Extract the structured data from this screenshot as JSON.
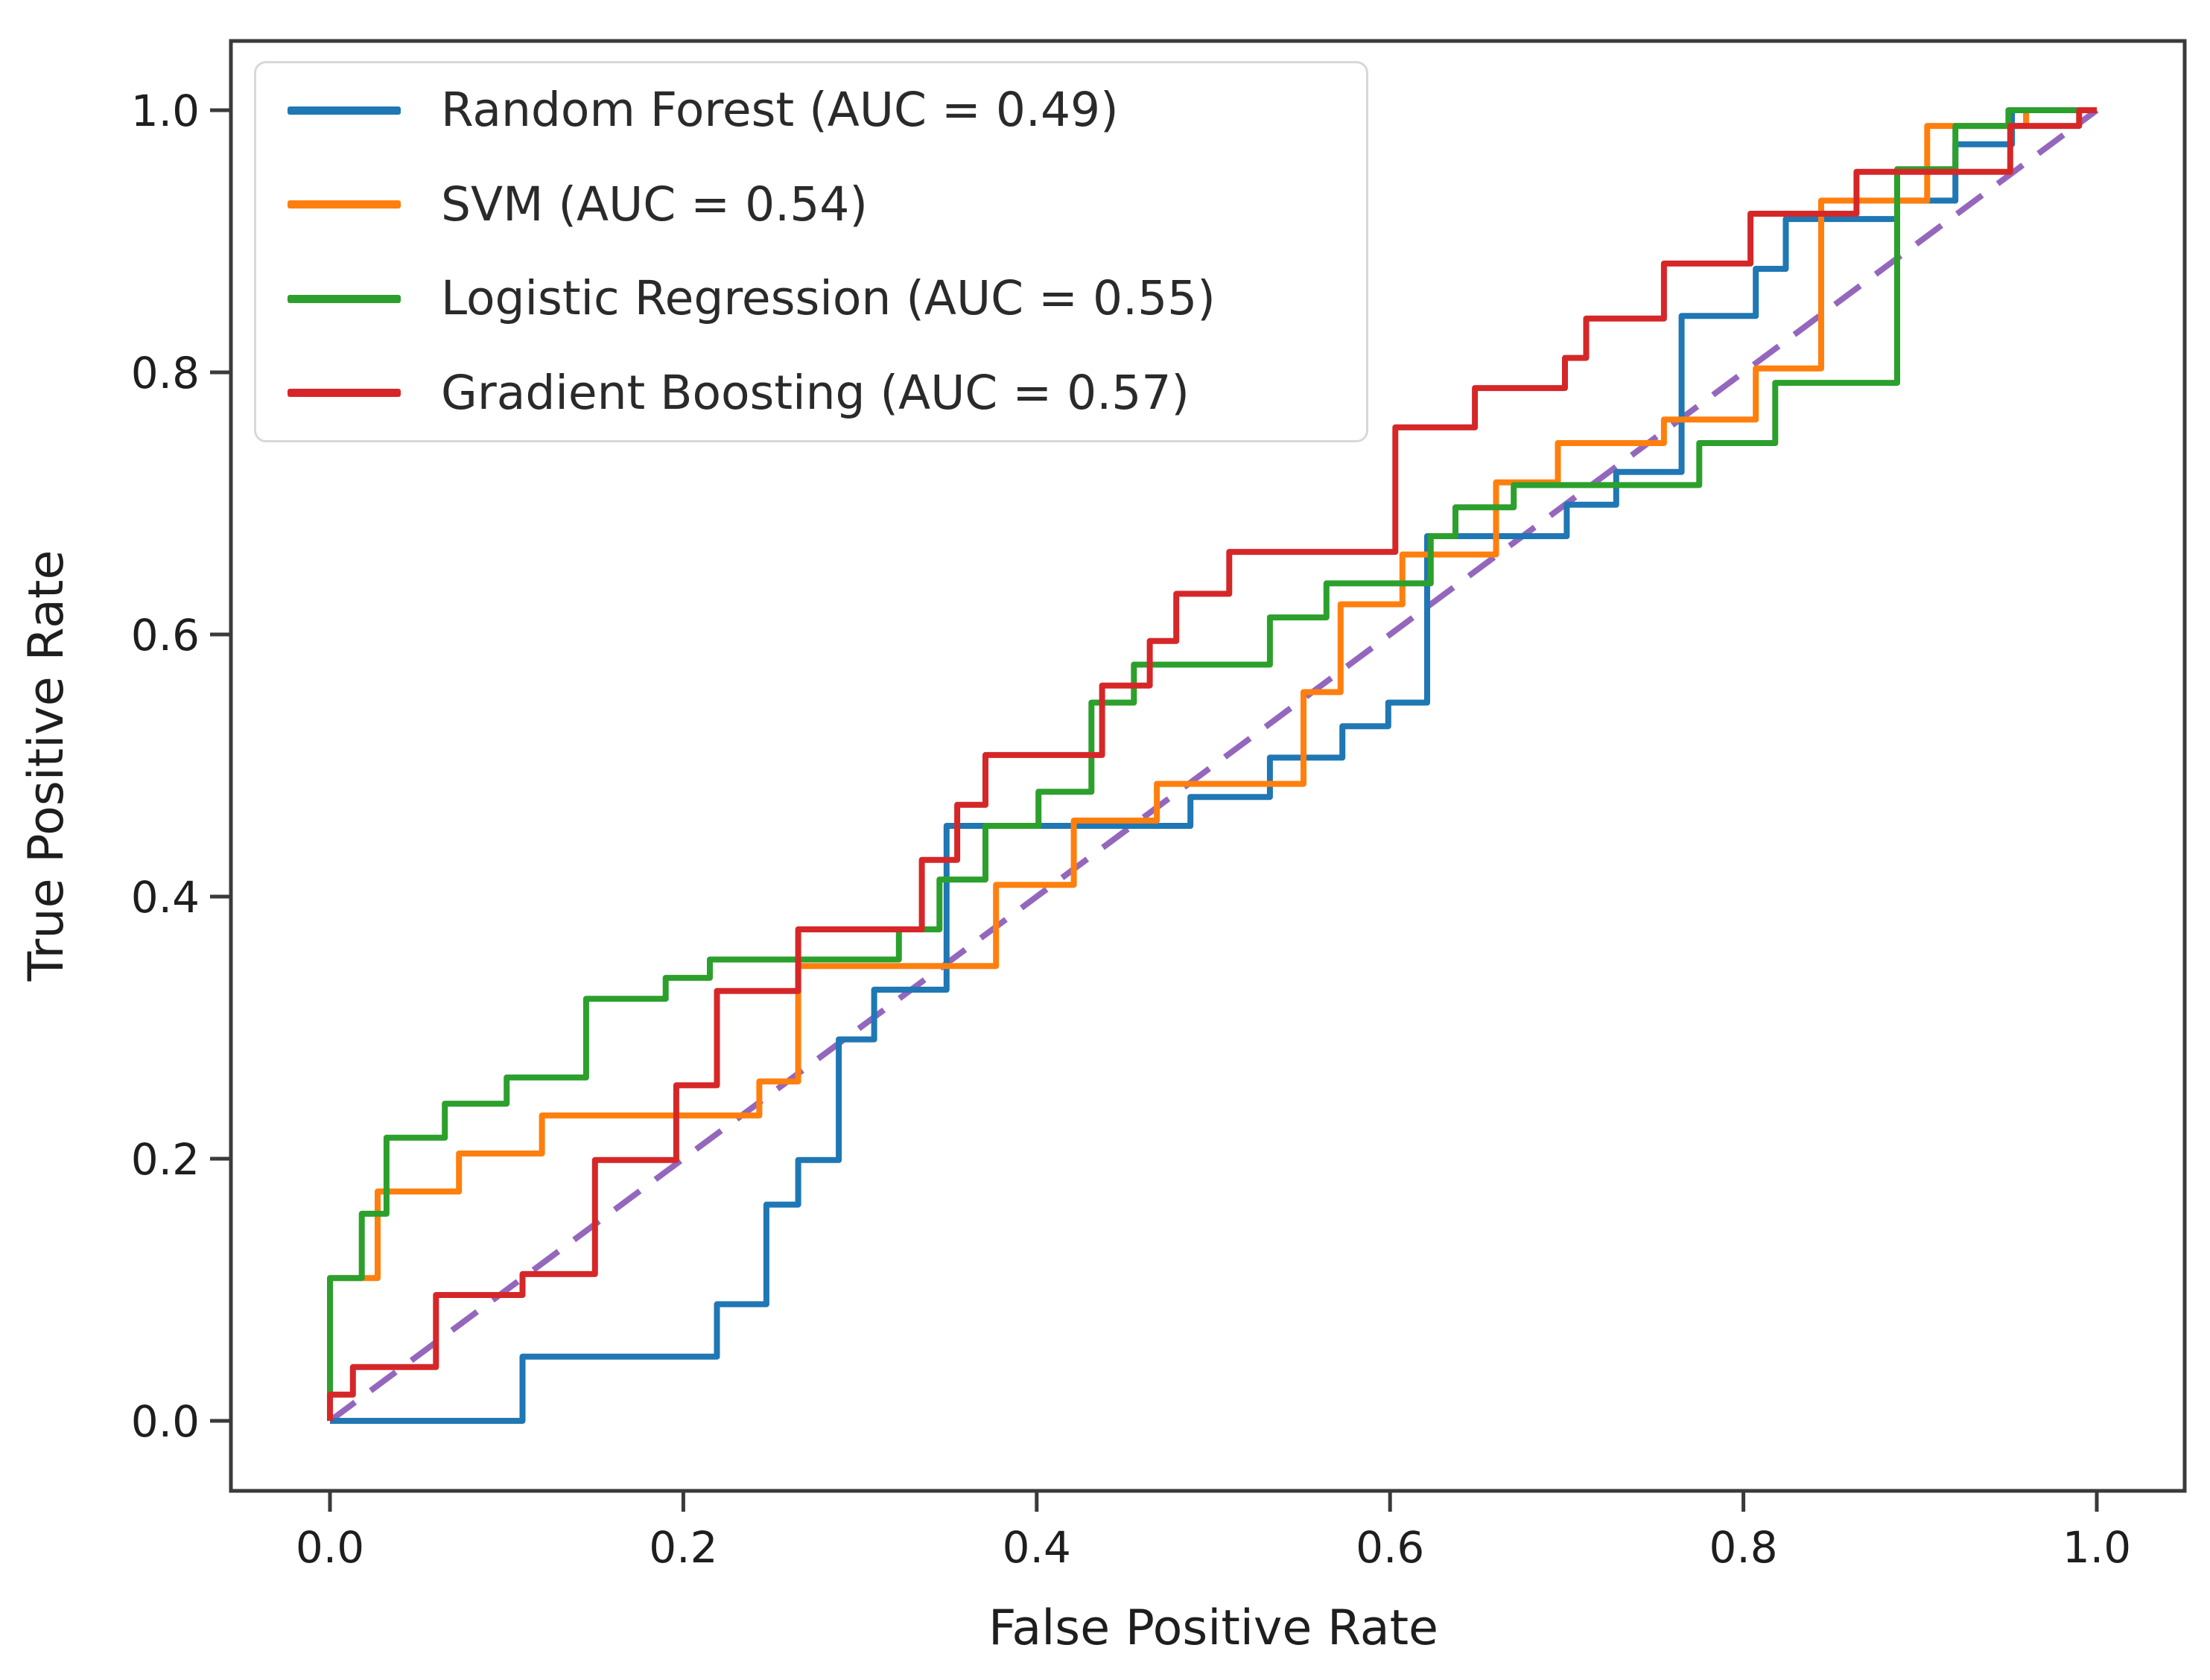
{
  "figure": {
    "background": "#ffffff",
    "spine_color": "#3a3a3a",
    "text_color": "#1e1e1e",
    "legend_border_color": "#d8d8d8"
  },
  "chart_data": {
    "type": "line",
    "subtype": "roc-step-curves",
    "title": "",
    "xlabel": "False Positive Rate",
    "ylabel": "True Positive Rate",
    "xlim": [
      0,
      1
    ],
    "ylim": [
      0,
      1
    ],
    "grid": false,
    "legend_position": "upper left",
    "x_ticks": [
      0.0,
      0.2,
      0.4,
      0.6,
      0.8,
      1.0
    ],
    "y_ticks": [
      0.0,
      0.2,
      0.4,
      0.6,
      0.8,
      1.0
    ],
    "x_tick_labels": [
      "0.0",
      "0.2",
      "0.4",
      "0.6",
      "0.8",
      "1.0"
    ],
    "y_tick_labels": [
      "0.0",
      "0.2",
      "0.4",
      "0.6",
      "0.8",
      "1.0"
    ],
    "series": [
      {
        "id": "reference-diagonal",
        "role": "chance-line",
        "color": "#9467bd",
        "line_style": "dashed",
        "in_legend": false,
        "points": [
          [
            0,
            0
          ],
          [
            1,
            1
          ]
        ]
      },
      {
        "id": "random-forest",
        "model": "Random Forest",
        "auc": 0.49,
        "label": "Random Forest (AUC = 0.49)",
        "color": "#1f77b4",
        "line_style": "solid",
        "in_legend": true,
        "points": [
          [
            0,
            0
          ],
          [
            0.109,
            0
          ],
          [
            0.109,
            0.049
          ],
          [
            0.219,
            0.049
          ],
          [
            0.219,
            0.089
          ],
          [
            0.247,
            0.089
          ],
          [
            0.247,
            0.165
          ],
          [
            0.265,
            0.165
          ],
          [
            0.265,
            0.199
          ],
          [
            0.288,
            0.199
          ],
          [
            0.288,
            0.291
          ],
          [
            0.308,
            0.291
          ],
          [
            0.308,
            0.329
          ],
          [
            0.349,
            0.329
          ],
          [
            0.349,
            0.454
          ],
          [
            0.487,
            0.454
          ],
          [
            0.487,
            0.476
          ],
          [
            0.532,
            0.476
          ],
          [
            0.532,
            0.506
          ],
          [
            0.573,
            0.506
          ],
          [
            0.573,
            0.53
          ],
          [
            0.599,
            0.53
          ],
          [
            0.599,
            0.548
          ],
          [
            0.621,
            0.548
          ],
          [
            0.621,
            0.675
          ],
          [
            0.7,
            0.675
          ],
          [
            0.7,
            0.699
          ],
          [
            0.728,
            0.699
          ],
          [
            0.728,
            0.724
          ],
          [
            0.765,
            0.724
          ],
          [
            0.765,
            0.843
          ],
          [
            0.807,
            0.843
          ],
          [
            0.807,
            0.879
          ],
          [
            0.824,
            0.879
          ],
          [
            0.824,
            0.917
          ],
          [
            0.887,
            0.917
          ],
          [
            0.887,
            0.931
          ],
          [
            0.92,
            0.931
          ],
          [
            0.92,
            0.974
          ],
          [
            0.952,
            0.974
          ],
          [
            0.952,
            1
          ],
          [
            1,
            1
          ]
        ]
      },
      {
        "id": "svm",
        "model": "SVM",
        "auc": 0.54,
        "label": "SVM (AUC = 0.54)",
        "color": "#ff7f0e",
        "line_style": "solid",
        "in_legend": true,
        "points": [
          [
            0,
            0
          ],
          [
            0,
            0.109
          ],
          [
            0.027,
            0.109
          ],
          [
            0.027,
            0.175
          ],
          [
            0.073,
            0.175
          ],
          [
            0.073,
            0.204
          ],
          [
            0.12,
            0.204
          ],
          [
            0.12,
            0.233
          ],
          [
            0.243,
            0.233
          ],
          [
            0.243,
            0.259
          ],
          [
            0.265,
            0.259
          ],
          [
            0.265,
            0.347
          ],
          [
            0.377,
            0.347
          ],
          [
            0.377,
            0.409
          ],
          [
            0.421,
            0.409
          ],
          [
            0.421,
            0.458
          ],
          [
            0.468,
            0.458
          ],
          [
            0.468,
            0.486
          ],
          [
            0.551,
            0.486
          ],
          [
            0.551,
            0.556
          ],
          [
            0.572,
            0.556
          ],
          [
            0.572,
            0.623
          ],
          [
            0.607,
            0.623
          ],
          [
            0.607,
            0.661
          ],
          [
            0.66,
            0.661
          ],
          [
            0.66,
            0.716
          ],
          [
            0.695,
            0.716
          ],
          [
            0.695,
            0.746
          ],
          [
            0.755,
            0.746
          ],
          [
            0.755,
            0.764
          ],
          [
            0.807,
            0.764
          ],
          [
            0.807,
            0.803
          ],
          [
            0.844,
            0.803
          ],
          [
            0.844,
            0.931
          ],
          [
            0.904,
            0.931
          ],
          [
            0.904,
            0.988
          ],
          [
            0.96,
            0.988
          ],
          [
            0.96,
            1
          ],
          [
            1,
            1
          ]
        ]
      },
      {
        "id": "logistic-regression",
        "model": "Logistic Regression",
        "auc": 0.55,
        "label": "Logistic Regression (AUC = 0.55)",
        "color": "#2ca02c",
        "line_style": "solid",
        "in_legend": true,
        "points": [
          [
            0,
            0
          ],
          [
            0,
            0.109
          ],
          [
            0.018,
            0.109
          ],
          [
            0.018,
            0.158
          ],
          [
            0.032,
            0.158
          ],
          [
            0.032,
            0.216
          ],
          [
            0.065,
            0.216
          ],
          [
            0.065,
            0.242
          ],
          [
            0.1,
            0.242
          ],
          [
            0.1,
            0.262
          ],
          [
            0.145,
            0.262
          ],
          [
            0.145,
            0.322
          ],
          [
            0.19,
            0.322
          ],
          [
            0.19,
            0.338
          ],
          [
            0.215,
            0.338
          ],
          [
            0.215,
            0.352
          ],
          [
            0.322,
            0.352
          ],
          [
            0.322,
            0.375
          ],
          [
            0.345,
            0.375
          ],
          [
            0.345,
            0.413
          ],
          [
            0.371,
            0.413
          ],
          [
            0.371,
            0.454
          ],
          [
            0.401,
            0.454
          ],
          [
            0.401,
            0.48
          ],
          [
            0.431,
            0.48
          ],
          [
            0.431,
            0.548
          ],
          [
            0.455,
            0.548
          ],
          [
            0.455,
            0.577
          ],
          [
            0.532,
            0.577
          ],
          [
            0.532,
            0.613
          ],
          [
            0.564,
            0.613
          ],
          [
            0.564,
            0.639
          ],
          [
            0.623,
            0.639
          ],
          [
            0.623,
            0.675
          ],
          [
            0.637,
            0.675
          ],
          [
            0.637,
            0.697
          ],
          [
            0.67,
            0.697
          ],
          [
            0.67,
            0.714
          ],
          [
            0.775,
            0.714
          ],
          [
            0.775,
            0.746
          ],
          [
            0.818,
            0.746
          ],
          [
            0.818,
            0.792
          ],
          [
            0.887,
            0.792
          ],
          [
            0.887,
            0.955
          ],
          [
            0.92,
            0.955
          ],
          [
            0.92,
            0.988
          ],
          [
            0.95,
            0.988
          ],
          [
            0.95,
            1
          ],
          [
            1,
            1
          ]
        ]
      },
      {
        "id": "gradient-boosting",
        "model": "Gradient Boosting",
        "auc": 0.57,
        "label": "Gradient Boosting (AUC = 0.57)",
        "color": "#d62728",
        "line_style": "solid",
        "in_legend": true,
        "points": [
          [
            0,
            0
          ],
          [
            0,
            0.02
          ],
          [
            0.013,
            0.02
          ],
          [
            0.013,
            0.041
          ],
          [
            0.06,
            0.041
          ],
          [
            0.06,
            0.096
          ],
          [
            0.109,
            0.096
          ],
          [
            0.109,
            0.112
          ],
          [
            0.15,
            0.112
          ],
          [
            0.15,
            0.199
          ],
          [
            0.196,
            0.199
          ],
          [
            0.196,
            0.256
          ],
          [
            0.219,
            0.256
          ],
          [
            0.219,
            0.328
          ],
          [
            0.265,
            0.328
          ],
          [
            0.265,
            0.375
          ],
          [
            0.335,
            0.375
          ],
          [
            0.335,
            0.428
          ],
          [
            0.355,
            0.428
          ],
          [
            0.355,
            0.47
          ],
          [
            0.371,
            0.47
          ],
          [
            0.371,
            0.508
          ],
          [
            0.437,
            0.508
          ],
          [
            0.437,
            0.561
          ],
          [
            0.464,
            0.561
          ],
          [
            0.464,
            0.595
          ],
          [
            0.479,
            0.595
          ],
          [
            0.479,
            0.631
          ],
          [
            0.509,
            0.631
          ],
          [
            0.509,
            0.663
          ],
          [
            0.603,
            0.663
          ],
          [
            0.603,
            0.758
          ],
          [
            0.648,
            0.758
          ],
          [
            0.648,
            0.788
          ],
          [
            0.699,
            0.788
          ],
          [
            0.699,
            0.811
          ],
          [
            0.711,
            0.811
          ],
          [
            0.711,
            0.841
          ],
          [
            0.755,
            0.841
          ],
          [
            0.755,
            0.883
          ],
          [
            0.804,
            0.883
          ],
          [
            0.804,
            0.921
          ],
          [
            0.864,
            0.921
          ],
          [
            0.864,
            0.953
          ],
          [
            0.951,
            0.953
          ],
          [
            0.951,
            0.988
          ],
          [
            0.99,
            0.988
          ],
          [
            0.99,
            1
          ],
          [
            1,
            1
          ]
        ]
      }
    ]
  }
}
